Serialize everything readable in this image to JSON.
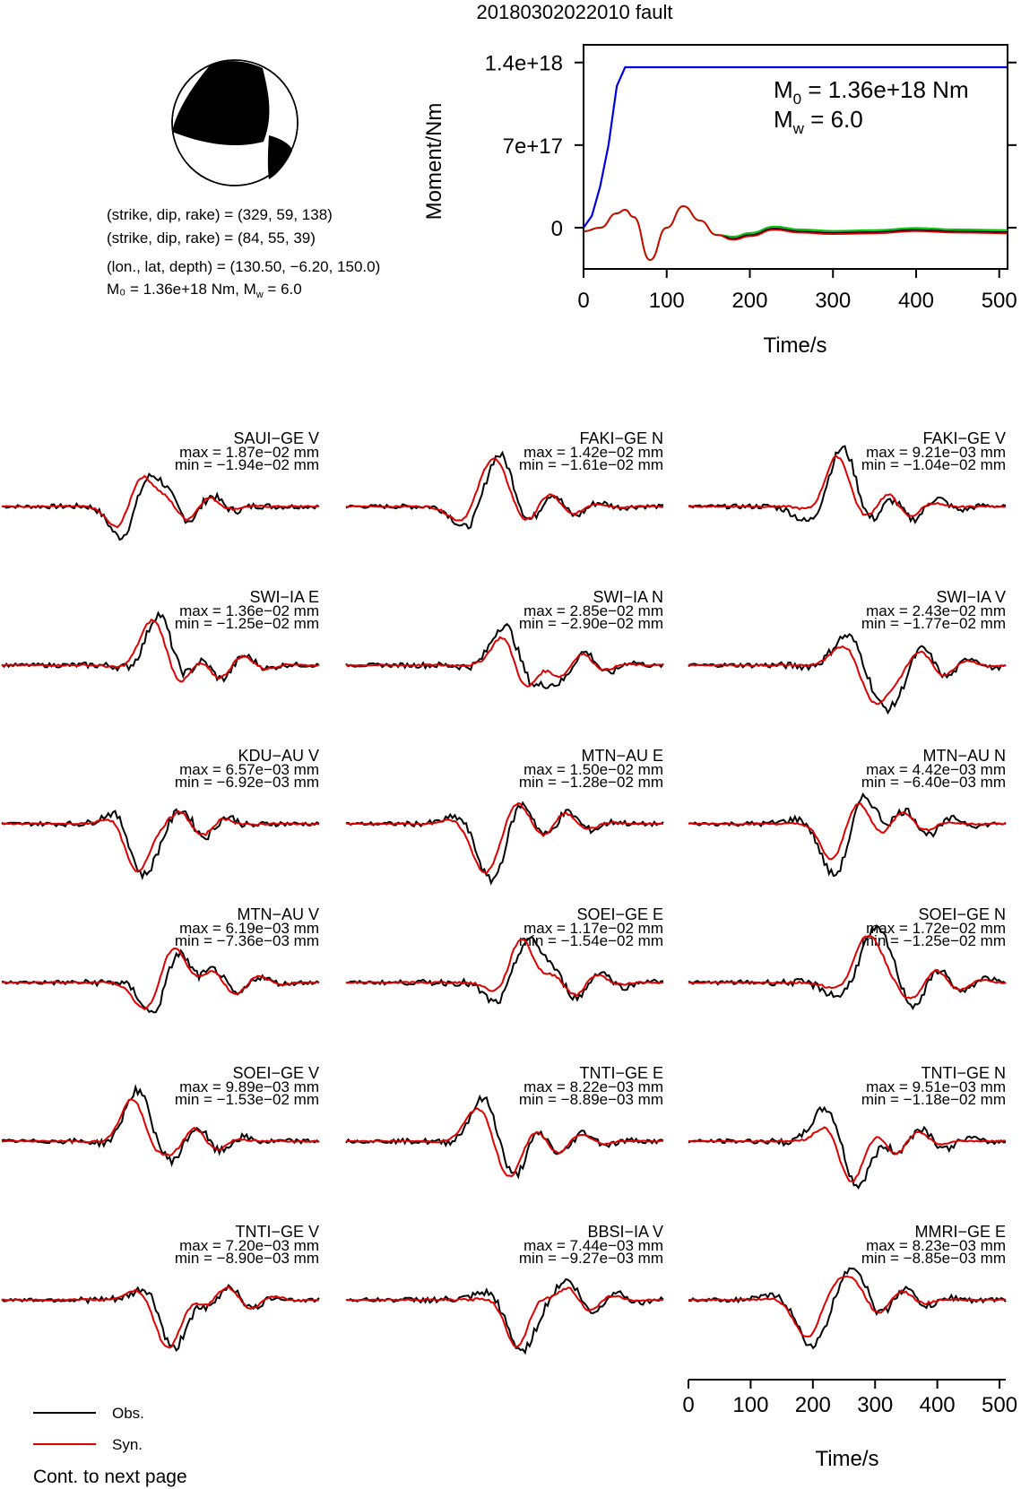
{
  "title": "20180302022010 fault",
  "mechanism": {
    "line1": "(strike, dip, rake) = (329, 59, 138)",
    "line2": "(strike, dip, rake) = (84, 55, 39)",
    "line3": "(lon., lat, depth) = (130.50, −6.20, 150.0)",
    "m0_text": "M₀ = 1.36e+18 Nm, ",
    "mw_text": "M",
    "mw_sub": "w",
    "mw_value": " = 6.0"
  },
  "moment_panel": {
    "ylabel": "Moment/Nm",
    "xlabel": "Time/s",
    "yticks": [
      "0",
      "7e+17",
      "1.4e+18"
    ],
    "xticks": [
      "0",
      "100",
      "200",
      "300",
      "400",
      "500"
    ],
    "m0_label": "M",
    "m0_sub": "0",
    "m0_value": " = 1.36e+18 Nm",
    "mw_label": "M",
    "mw_sub": "w",
    "mw_value": " = 6.0"
  },
  "waveforms": [
    {
      "station": "SAUI−GE V",
      "max": "max = 1.87e−02 mm",
      "min": "min = −1.94e−02 mm"
    },
    {
      "station": "FAKI−GE N",
      "max": "max = 1.42e−02 mm",
      "min": "min = −1.61e−02 mm"
    },
    {
      "station": "FAKI−GE V",
      "max": "max = 9.21e−03 mm",
      "min": "min = −1.04e−02 mm"
    },
    {
      "station": "SWI−IA E",
      "max": "max = 1.36e−02 mm",
      "min": "min = −1.25e−02 mm"
    },
    {
      "station": "SWI−IA N",
      "max": "max = 2.85e−02 mm",
      "min": "min = −2.90e−02 mm"
    },
    {
      "station": "SWI−IA V",
      "max": "max = 2.43e−02 mm",
      "min": "min = −1.77e−02 mm"
    },
    {
      "station": "KDU−AU V",
      "max": "max = 6.57e−03 mm",
      "min": "min = −6.92e−03 mm"
    },
    {
      "station": "MTN−AU E",
      "max": "max = 1.50e−02 mm",
      "min": "min = −1.28e−02 mm"
    },
    {
      "station": "MTN−AU N",
      "max": "max = 4.42e−03 mm",
      "min": "min = −6.40e−03 mm"
    },
    {
      "station": "MTN−AU V",
      "max": "max = 6.19e−03 mm",
      "min": "min = −7.36e−03 mm"
    },
    {
      "station": "SOEI−GE E",
      "max": "max = 1.17e−02 mm",
      "min": "min = −1.54e−02 mm"
    },
    {
      "station": "SOEI−GE N",
      "max": "max = 1.72e−02 mm",
      "min": "min = −1.25e−02 mm"
    },
    {
      "station": "SOEI−GE V",
      "max": "max = 9.89e−03 mm",
      "min": "min = −1.53e−02 mm"
    },
    {
      "station": "TNTI−GE E",
      "max": "max = 8.22e−03 mm",
      "min": "min = −8.89e−03 mm"
    },
    {
      "station": "TNTI−GE N",
      "max": "max = 9.51e−03 mm",
      "min": "min = −1.18e−02 mm"
    },
    {
      "station": "TNTI−GE V",
      "max": "max = 7.20e−03 mm",
      "min": "min = −8.90e−03 mm"
    },
    {
      "station": "BBSI−IA V",
      "max": "max = 7.44e−03 mm",
      "min": "min = −9.27e−03 mm"
    },
    {
      "station": "MMRI−GE E",
      "max": "max = 8.23e−03 mm",
      "min": "min = −8.85e−03 mm"
    }
  ],
  "time_axis": {
    "xlabel": "Time/s",
    "xticks": [
      "0",
      "100",
      "200",
      "300",
      "400",
      "500"
    ]
  },
  "legend": {
    "obs": "Obs.",
    "syn": "Syn."
  },
  "footer": "Cont. to next page",
  "colors": {
    "obs": "#000000",
    "syn": "#e00000",
    "moment": "#0000e0",
    "green": "#00c000"
  },
  "chart_data": [
    {
      "type": "line",
      "title": "",
      "xlabel": "Time/s",
      "ylabel": "Moment/Nm",
      "xlim": [
        0,
        510
      ],
      "ylim": [
        -3.5e+17,
        1.55e+18
      ],
      "series": [
        {
          "x": [
            0,
            10,
            20,
            30,
            40,
            50,
            60,
            510
          ],
          "values": [
            0,
            1e+17,
            3.5e+17,
            7e+17,
            1.2e+18,
            1.36e+18,
            1.36e+18,
            1.36e+18
          ]
        }
      ]
    },
    {
      "type": "line",
      "title": "",
      "xlabel": "Time/s",
      "xlim": [
        0,
        510
      ],
      "ylim": [
        -1,
        1
      ],
      "series": [
        {
          "x": [
            0,
            20,
            40,
            50,
            60,
            80,
            100,
            120,
            140,
            160,
            180,
            200,
            230,
            260,
            300,
            350,
            400,
            450,
            510
          ],
          "values": [
            0,
            0.05,
            0.25,
            0.3,
            0.2,
            -0.4,
            0.05,
            0.35,
            0.15,
            -0.05,
            -0.1,
            -0.05,
            0.04,
            0.0,
            -0.02,
            -0.01,
            0.02,
            0.0,
            -0.01
          ]
        }
      ]
    }
  ]
}
